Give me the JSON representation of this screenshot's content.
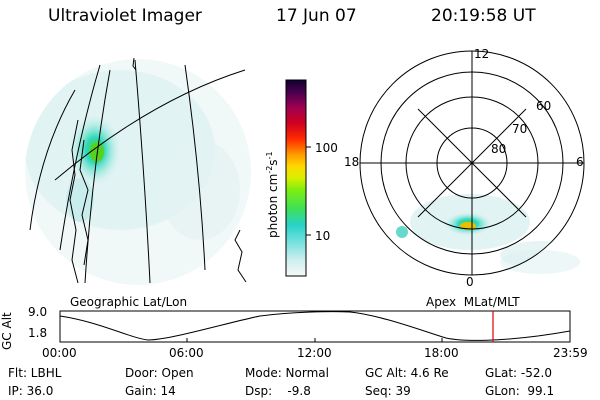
{
  "header": {
    "instrument": "Ultraviolet Imager",
    "date": "17 Jun 07",
    "time": "20:19:58 UT"
  },
  "colorbar": {
    "label_main": "photon cm",
    "label_sup1": "-2",
    "label_s": "s",
    "label_sup2": "-1",
    "ticks": [
      "100",
      "10"
    ],
    "scale": "log"
  },
  "geo_panel": {
    "label": "Geographic Lat/Lon"
  },
  "polar_panel": {
    "label": "Apex  MLat/MLT",
    "mlt_labels": {
      "top": "12",
      "left": "18",
      "right": "6",
      "bottom": "0"
    },
    "lat_labels": [
      "60",
      "70",
      "80"
    ]
  },
  "altitude_plot": {
    "ylabel": "GC Alt",
    "ytick_top": "9.0",
    "ytick_bottom": "1.8",
    "xticks": [
      "00:00",
      "06:00",
      "12:00",
      "18:00",
      "23:59"
    ],
    "current_marker_color": "#e00000"
  },
  "status": {
    "flt": "Flt: LBHL",
    "ip": "IP: 36.0",
    "door": "Door: Open",
    "gain": "Gain: 14",
    "mode": "Mode: Normal",
    "dsp": "Dsp:    -9.8",
    "gcalt": "GC Alt: 4.6 Re",
    "seq": "Seq: 39",
    "glat": "GLat: -52.0",
    "glon": "GLon:  99.1"
  }
}
